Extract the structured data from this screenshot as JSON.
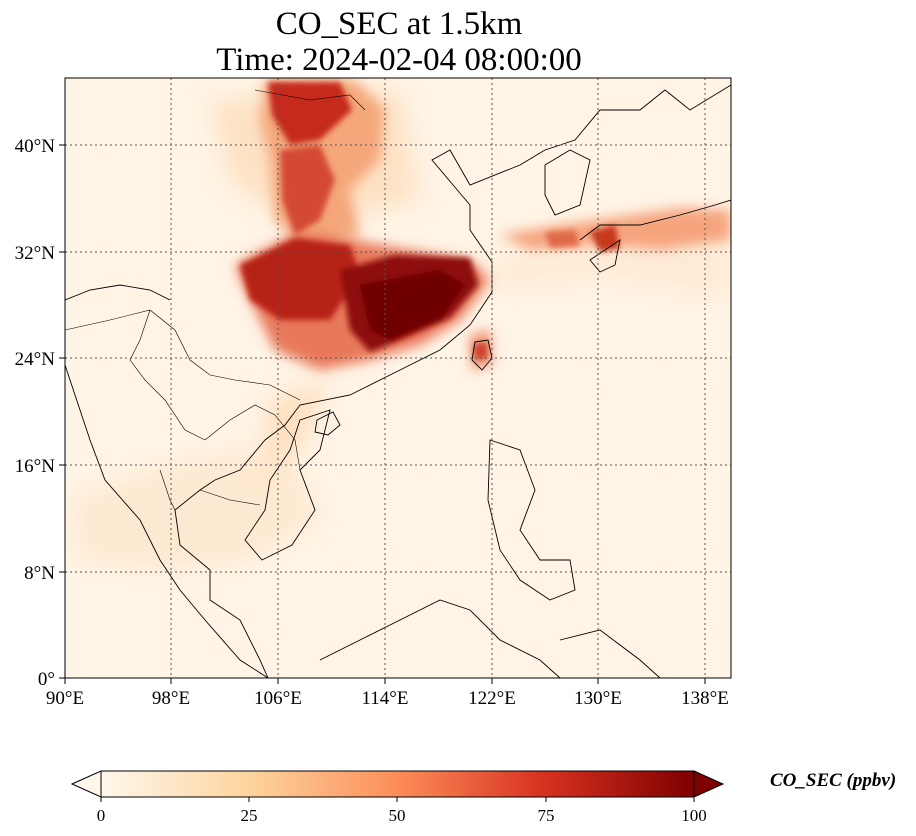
{
  "map": {
    "title_line1": "CO_SEC at 1.5km",
    "title_line2": "Time: 2024-02-04 08:00:00",
    "lon_ticks": [
      "90°E",
      "98°E",
      "106°E",
      "114°E",
      "122°E",
      "130°E",
      "138°E"
    ],
    "lat_ticks": [
      "40°N",
      "32°N",
      "24°N",
      "16°N",
      "8°N",
      "0°"
    ],
    "lon_range": [
      90,
      140
    ],
    "lat_range": [
      0,
      45
    ],
    "gridlines": "dotted"
  },
  "colorbar": {
    "label": "CO_SEC (ppbv)",
    "ticks": [
      "0",
      "25",
      "50",
      "75",
      "100"
    ],
    "range": [
      0,
      100
    ],
    "colormap": "OrRd",
    "extend": "both"
  },
  "colors": {
    "low": "#fff7ec",
    "mid": "#fc8d59",
    "high": "#7f0000"
  }
}
